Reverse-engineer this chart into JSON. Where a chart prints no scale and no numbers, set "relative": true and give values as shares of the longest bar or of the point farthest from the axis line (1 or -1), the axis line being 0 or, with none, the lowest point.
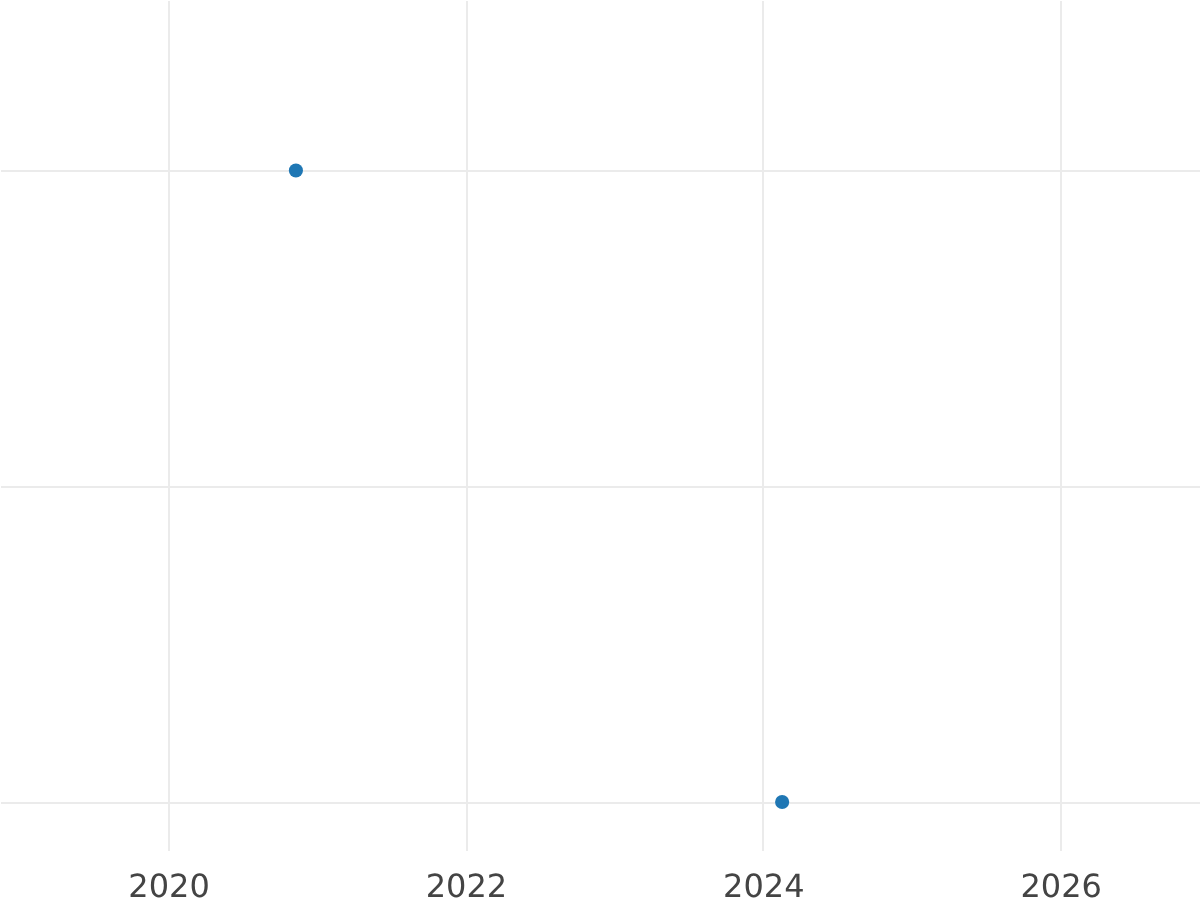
{
  "chart_data": {
    "type": "scatter",
    "x": [
      2020.86,
      2024.13
    ],
    "series": [
      {
        "color": "#1f77b4",
        "values": [
          1,
          0
        ]
      }
    ],
    "relative": true,
    "xlim": [
      2018.87,
      2026.94
    ],
    "xticks": [
      2020,
      2022,
      2024,
      2026
    ],
    "grid": true,
    "marker": "circle",
    "tick_labels": "x"
  }
}
